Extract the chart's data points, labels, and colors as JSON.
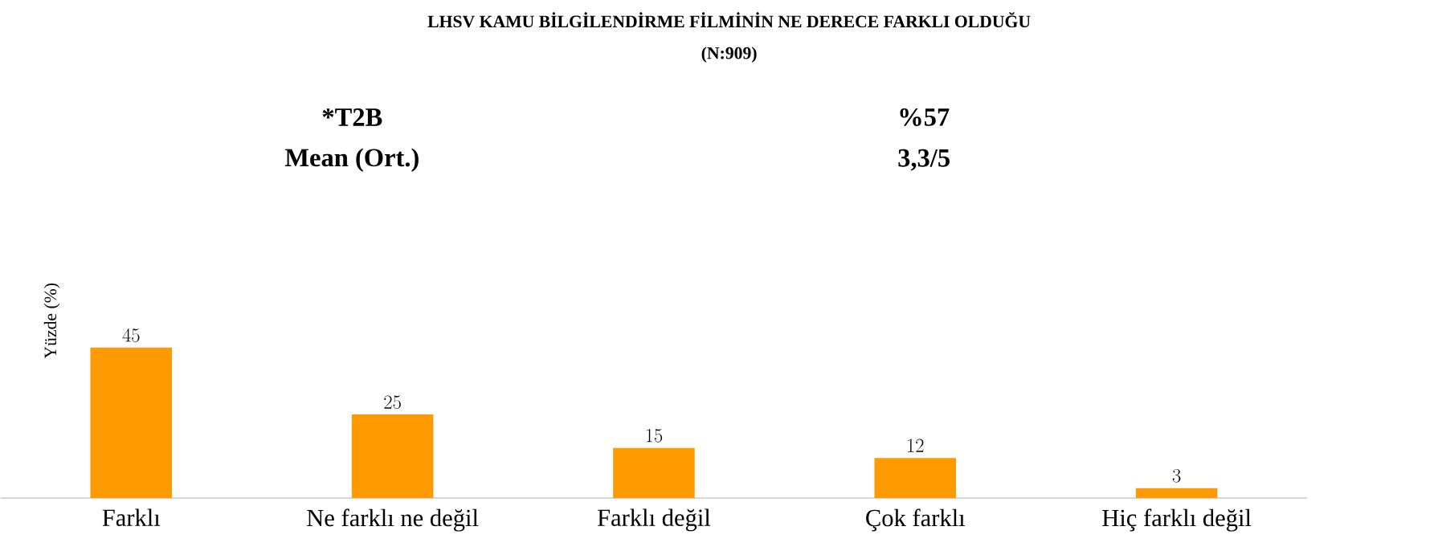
{
  "chart_data": {
    "type": "bar",
    "title": "LHSV KAMU BİLGİLENDİRME FİLMİNİN NE DERECE FARKLI OLDUĞU",
    "subtitle": "(N:909)",
    "ylabel": "Yüzde (%)",
    "annotations": [
      "*T2B",
      "%57",
      "Mean (Ort.)",
      "3,3/5"
    ],
    "categories": [
      "Farklı",
      "Ne farklı ne değil",
      "Farklı değil",
      "Çok farklı",
      "Hiç farklı değil"
    ],
    "values": [
      45,
      25,
      15,
      12,
      3
    ],
    "color": "#ff9900",
    "data_labels": true
  }
}
